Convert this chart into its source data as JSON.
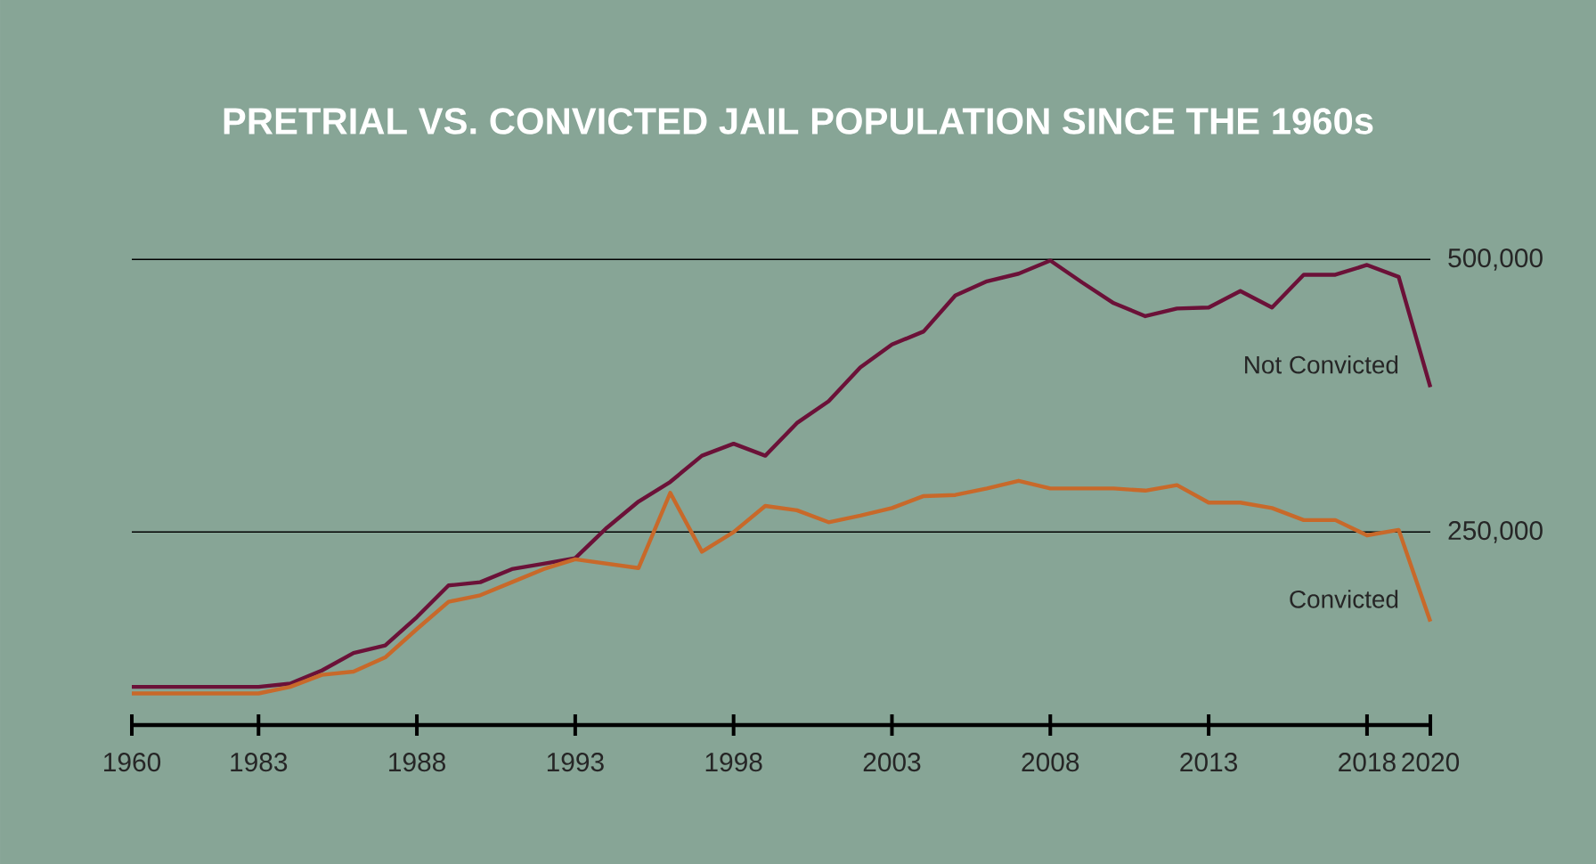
{
  "chart_data": {
    "type": "line",
    "title": "PRETRIAL VS. CONVICTED JAIL POPULATION SINCE THE 1960s",
    "categories": [
      "1960",
      null,
      null,
      null,
      "1983",
      null,
      null,
      null,
      null,
      "1988",
      null,
      null,
      null,
      null,
      "1993",
      null,
      null,
      null,
      null,
      "1998",
      null,
      null,
      null,
      null,
      "2003",
      null,
      null,
      null,
      null,
      "2008",
      null,
      null,
      null,
      null,
      "2013",
      null,
      null,
      null,
      null,
      "2018",
      null,
      "2020"
    ],
    "series": [
      {
        "name": "Not Convicted",
        "color": "#6b1138",
        "values": [
          108000,
          108000,
          108000,
          108000,
          108000,
          111000,
          123000,
          139000,
          146000,
          172000,
          201000,
          204000,
          216000,
          221000,
          226000,
          254000,
          278000,
          296000,
          320000,
          331000,
          320000,
          350000,
          370000,
          401000,
          422000,
          434000,
          467000,
          480000,
          487000,
          499000,
          479000,
          460000,
          448000,
          455000,
          456000,
          471000,
          456000,
          486000,
          486000,
          495000,
          484000,
          383000
        ]
      },
      {
        "name": "Convicted",
        "color": "#c8692a",
        "values": [
          102000,
          102000,
          102000,
          102000,
          102000,
          108000,
          119000,
          122000,
          135000,
          161000,
          186000,
          192000,
          204000,
          216000,
          225000,
          221000,
          217000,
          286000,
          232000,
          250000,
          274000,
          270000,
          259000,
          265000,
          272000,
          283000,
          284000,
          290000,
          297000,
          290000,
          290000,
          290000,
          288000,
          293000,
          277000,
          277000,
          272000,
          261000,
          261000,
          247000,
          252000,
          168000
        ]
      }
    ],
    "ylim": [
      73000,
      500000
    ],
    "yticks": [
      {
        "value": 250000,
        "label": "250,000"
      },
      {
        "value": 500000,
        "label": "500,000"
      }
    ],
    "grid": "y"
  }
}
